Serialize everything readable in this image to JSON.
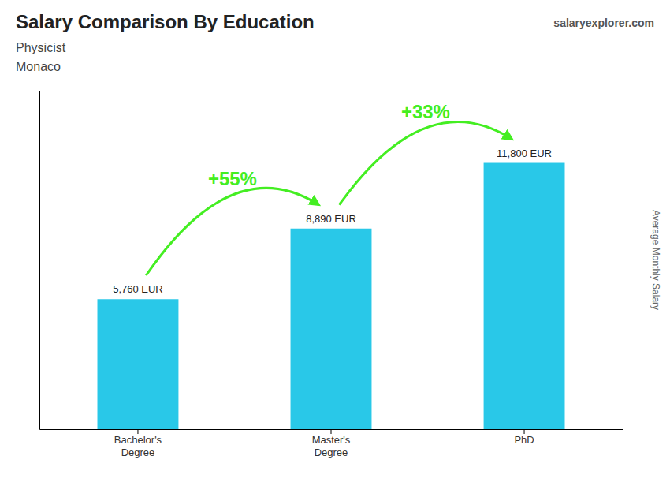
{
  "chart_data": {
    "type": "bar",
    "title": "Salary Comparison By Education",
    "subtitle": [
      "Physicist",
      "Monaco"
    ],
    "watermark": [
      "salary",
      "explorer",
      ".com"
    ],
    "ylabel": "Average Monthly Salary",
    "categories": [
      "Bachelor's\nDegree",
      "Master's\nDegree",
      "PhD"
    ],
    "values": [
      5760,
      8890,
      11800
    ],
    "value_labels": [
      "5,760 EUR",
      "8,890 EUR",
      "11,800 EUR"
    ],
    "data_labels": true,
    "color": "#29c8e8",
    "annotations": [
      {
        "text": "+55%",
        "color": "#44ee22"
      },
      {
        "text": "+33%",
        "color": "#44ee22"
      }
    ],
    "ylim": [
      0,
      15000
    ],
    "tick_labels": "x",
    "grid": false
  }
}
